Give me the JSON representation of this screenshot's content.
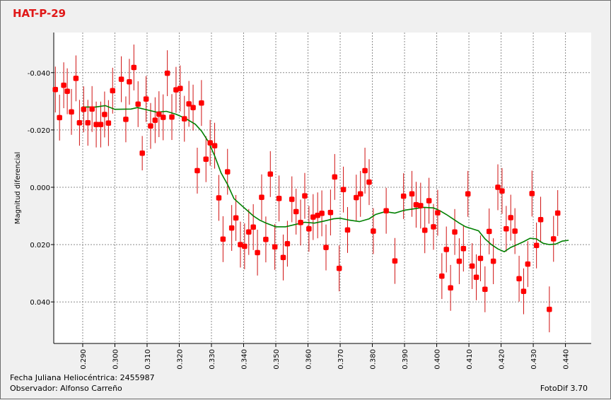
{
  "header": {
    "title": "HAT-P-29"
  },
  "footer": {
    "fecha": "Fecha Juliana Heliocéntrica: 2455987",
    "observador": "Observador: Alfonso Carreño",
    "software": "FotoDif 3.70"
  },
  "colors": {
    "points": "#ff0000",
    "error_bars": "#d01010",
    "trend_line": "#008000",
    "grid": "#8c8c8c",
    "title": "#e01818"
  },
  "chart_data": {
    "type": "scatter",
    "title": "HAT-P-29",
    "xlabel": "",
    "ylabel": "Magnitud diferencial",
    "xlim": [
      0.281,
      0.448
    ],
    "ylim": [
      0.0545,
      -0.054
    ],
    "y_inverted": true,
    "grid": true,
    "x_ticks": [
      0.29,
      0.3,
      0.31,
      0.32,
      0.33,
      0.34,
      0.35,
      0.36,
      0.37,
      0.38,
      0.39,
      0.4,
      0.41,
      0.42,
      0.43,
      0.44
    ],
    "x_tick_labels": [
      "0.290",
      "0.300",
      "0.310",
      "0.320",
      "0.330",
      "0.340",
      "0.350",
      "0.360",
      "0.370",
      "0.380",
      "0.390",
      "0.400",
      "0.410",
      "0.420",
      "0.430",
      "0.440"
    ],
    "y_ticks": [
      -0.04,
      -0.02,
      0.0,
      0.02,
      0.04
    ],
    "y_tick_labels": [
      "-0.040",
      "-0.020",
      "0.000",
      "0.020",
      "0.040"
    ],
    "series": [
      {
        "marker": "points-with-errorbars",
        "points": [
          [
            0.2815,
            -0.0341,
            0.008
          ],
          [
            0.2828,
            -0.0243,
            0.008
          ],
          [
            0.2841,
            -0.0356,
            0.008
          ],
          [
            0.2852,
            -0.0335,
            0.008
          ],
          [
            0.2865,
            -0.0263,
            0.008
          ],
          [
            0.2879,
            -0.038,
            0.008
          ],
          [
            0.289,
            -0.0225,
            0.008
          ],
          [
            0.2903,
            -0.0272,
            0.008
          ],
          [
            0.2916,
            -0.0225,
            0.008
          ],
          [
            0.2929,
            -0.0273,
            0.008
          ],
          [
            0.2942,
            -0.0219,
            0.008
          ],
          [
            0.2956,
            -0.0219,
            0.008
          ],
          [
            0.2968,
            -0.0254,
            0.008
          ],
          [
            0.298,
            -0.0224,
            0.008
          ],
          [
            0.2993,
            -0.0337,
            0.008
          ],
          [
            0.302,
            -0.0377,
            0.008
          ],
          [
            0.3034,
            -0.0237,
            0.008
          ],
          [
            0.3045,
            -0.0368,
            0.008
          ],
          [
            0.3059,
            -0.0418,
            0.008
          ],
          [
            0.3072,
            -0.029,
            0.008
          ],
          [
            0.3085,
            -0.0119,
            0.006
          ],
          [
            0.3097,
            -0.0308,
            0.008
          ],
          [
            0.3111,
            -0.0214,
            0.008
          ],
          [
            0.3125,
            -0.0234,
            0.008
          ],
          [
            0.3137,
            -0.0255,
            0.008
          ],
          [
            0.315,
            -0.0244,
            0.008
          ],
          [
            0.3163,
            -0.0398,
            0.008
          ],
          [
            0.3177,
            -0.0245,
            0.008
          ],
          [
            0.319,
            -0.034,
            0.008
          ],
          [
            0.3203,
            -0.0345,
            0.008
          ],
          [
            0.3216,
            -0.0239,
            0.008
          ],
          [
            0.323,
            -0.0291,
            0.008
          ],
          [
            0.3243,
            -0.0278,
            0.008
          ],
          [
            0.3256,
            -0.0058,
            0.008
          ],
          [
            0.3269,
            -0.0294,
            0.008
          ],
          [
            0.3283,
            -0.0098,
            0.008
          ],
          [
            0.3296,
            -0.0155,
            0.008
          ],
          [
            0.331,
            -0.0145,
            0.008
          ],
          [
            0.3323,
            0.0037,
            0.008
          ],
          [
            0.3336,
            0.0181,
            0.008
          ],
          [
            0.335,
            -0.0054,
            0.008
          ],
          [
            0.3363,
            0.0142,
            0.008
          ],
          [
            0.3376,
            0.0107,
            0.008
          ],
          [
            0.339,
            0.02,
            0.008
          ],
          [
            0.3403,
            0.0206,
            0.008
          ],
          [
            0.3416,
            0.0156,
            0.008
          ],
          [
            0.343,
            0.0139,
            0.008
          ],
          [
            0.3443,
            0.0228,
            0.008
          ],
          [
            0.3456,
            0.0035,
            0.008
          ],
          [
            0.3469,
            0.0182,
            0.008
          ],
          [
            0.3483,
            -0.0046,
            0.008
          ],
          [
            0.3497,
            0.0208,
            0.008
          ],
          [
            0.351,
            0.0039,
            0.008
          ],
          [
            0.3523,
            0.0245,
            0.008
          ],
          [
            0.3536,
            0.0197,
            0.008
          ],
          [
            0.355,
            0.0042,
            0.008
          ],
          [
            0.3563,
            0.0085,
            0.008
          ],
          [
            0.3577,
            0.0123,
            0.008
          ],
          [
            0.359,
            0.003,
            0.008
          ],
          [
            0.3603,
            0.0145,
            0.008
          ],
          [
            0.3616,
            0.0104,
            0.008
          ],
          [
            0.363,
            0.0098,
            0.008
          ],
          [
            0.3643,
            0.0091,
            0.008
          ],
          [
            0.3656,
            0.021,
            0.008
          ],
          [
            0.367,
            0.0088,
            0.008
          ],
          [
            0.3683,
            -0.0036,
            0.008
          ],
          [
            0.3697,
            0.0283,
            0.008
          ],
          [
            0.371,
            0.0008,
            0.008
          ],
          [
            0.3723,
            0.0149,
            0.008
          ],
          [
            0.375,
            0.0036,
            0.008
          ],
          [
            0.3763,
            0.0023,
            0.008
          ],
          [
            0.3777,
            -0.0058,
            0.008
          ],
          [
            0.379,
            -0.0018,
            0.008
          ],
          [
            0.3803,
            0.0153,
            0.008
          ],
          [
            0.3843,
            0.0082,
            0.008
          ],
          [
            0.387,
            0.0257,
            0.008
          ],
          [
            0.3897,
            0.0031,
            0.008
          ],
          [
            0.3923,
            0.0023,
            0.008
          ],
          [
            0.3936,
            0.0061,
            0.008
          ],
          [
            0.395,
            0.0064,
            0.008
          ],
          [
            0.3963,
            0.015,
            0.008
          ],
          [
            0.3976,
            0.0047,
            0.008
          ],
          [
            0.399,
            0.0138,
            0.008
          ],
          [
            0.4003,
            0.0089,
            0.008
          ],
          [
            0.4016,
            0.031,
            0.008
          ],
          [
            0.403,
            0.0217,
            0.008
          ],
          [
            0.4043,
            0.0351,
            0.008
          ],
          [
            0.4056,
            0.0156,
            0.008
          ],
          [
            0.407,
            0.0258,
            0.008
          ],
          [
            0.4083,
            0.0214,
            0.008
          ],
          [
            0.4097,
            0.0023,
            0.008
          ],
          [
            0.411,
            0.0275,
            0.008
          ],
          [
            0.4123,
            0.0314,
            0.008
          ],
          [
            0.4136,
            0.0248,
            0.008
          ],
          [
            0.415,
            0.0356,
            0.008
          ],
          [
            0.4163,
            0.0154,
            0.008
          ],
          [
            0.4176,
            0.0258,
            0.008
          ],
          [
            0.419,
            0.0,
            0.008
          ],
          [
            0.4203,
            0.0013,
            0.008
          ],
          [
            0.4216,
            0.0145,
            0.008
          ],
          [
            0.423,
            0.0106,
            0.008
          ],
          [
            0.4243,
            0.0153,
            0.008
          ],
          [
            0.4256,
            0.0319,
            0.008
          ],
          [
            0.427,
            0.0363,
            0.008
          ],
          [
            0.4283,
            0.0268,
            0.008
          ],
          [
            0.4296,
            0.0022,
            0.008
          ],
          [
            0.431,
            0.0203,
            0.008
          ],
          [
            0.4323,
            0.0113,
            0.008
          ],
          [
            0.435,
            0.0426,
            0.008
          ],
          [
            0.4363,
            0.018,
            0.008
          ],
          [
            0.4376,
            0.009,
            0.008
          ]
        ]
      },
      {
        "marker": "line",
        "points": [
          [
            0.29,
            -0.028
          ],
          [
            0.294,
            -0.028
          ],
          [
            0.297,
            -0.0285
          ],
          [
            0.3,
            -0.0272
          ],
          [
            0.305,
            -0.0273
          ],
          [
            0.307,
            -0.0278
          ],
          [
            0.31,
            -0.027
          ],
          [
            0.313,
            -0.0262
          ],
          [
            0.316,
            -0.0265
          ],
          [
            0.319,
            -0.0255
          ],
          [
            0.322,
            -0.024
          ],
          [
            0.325,
            -0.022
          ],
          [
            0.327,
            -0.0195
          ],
          [
            0.329,
            -0.016
          ],
          [
            0.331,
            -0.011
          ],
          [
            0.333,
            -0.005
          ],
          [
            0.335,
            -0.001
          ],
          [
            0.337,
            0.004
          ],
          [
            0.339,
            0.006
          ],
          [
            0.341,
            0.008
          ],
          [
            0.343,
            0.01
          ],
          [
            0.345,
            0.0115
          ],
          [
            0.347,
            0.0125
          ],
          [
            0.35,
            0.0138
          ],
          [
            0.353,
            0.0138
          ],
          [
            0.356,
            0.013
          ],
          [
            0.359,
            0.0122
          ],
          [
            0.362,
            0.0125
          ],
          [
            0.365,
            0.0118
          ],
          [
            0.368,
            0.011
          ],
          [
            0.37,
            0.0108
          ],
          [
            0.373,
            0.0115
          ],
          [
            0.376,
            0.012
          ],
          [
            0.379,
            0.011
          ],
          [
            0.381,
            0.0095
          ],
          [
            0.384,
            0.0085
          ],
          [
            0.387,
            0.009
          ],
          [
            0.39,
            0.008
          ],
          [
            0.393,
            0.0075
          ],
          [
            0.396,
            0.007
          ],
          [
            0.399,
            0.0072
          ],
          [
            0.401,
            0.0082
          ],
          [
            0.403,
            0.0095
          ],
          [
            0.405,
            0.011
          ],
          [
            0.407,
            0.0125
          ],
          [
            0.409,
            0.0138
          ],
          [
            0.411,
            0.0145
          ],
          [
            0.413,
            0.0152
          ],
          [
            0.415,
            0.018
          ],
          [
            0.417,
            0.02
          ],
          [
            0.419,
            0.0215
          ],
          [
            0.421,
            0.0225
          ],
          [
            0.423,
            0.021
          ],
          [
            0.425,
            0.02
          ],
          [
            0.427,
            0.019
          ],
          [
            0.429,
            0.0178
          ],
          [
            0.431,
            0.018
          ],
          [
            0.433,
            0.0195
          ],
          [
            0.435,
            0.02
          ],
          [
            0.437,
            0.0198
          ],
          [
            0.439,
            0.0188
          ],
          [
            0.441,
            0.0185
          ]
        ]
      }
    ]
  }
}
